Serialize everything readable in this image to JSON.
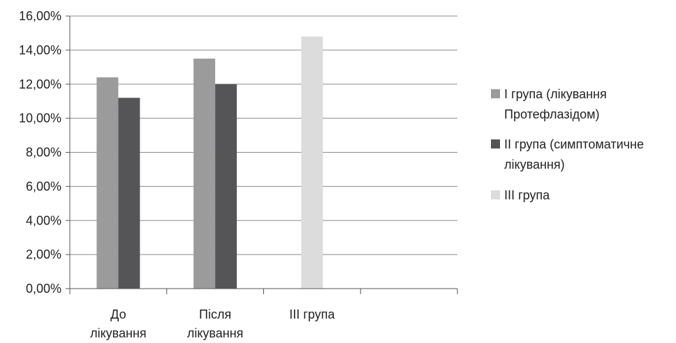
{
  "chart_data": {
    "type": "bar",
    "categories": [
      [
        "До",
        "лікування"
      ],
      [
        "Після",
        "лікування"
      ],
      [
        "III група"
      ],
      [
        ""
      ]
    ],
    "series": [
      {
        "name": "I група (лікування Протефлазідом)",
        "legend_lines": [
          "I група (лікування",
          "Протефлазідом)"
        ],
        "color": "#9b9b9b",
        "values": [
          12.4,
          13.5,
          null,
          null
        ]
      },
      {
        "name": "II група (симптоматичне лікування)",
        "legend_lines": [
          "II група (симптоматичне",
          "лікування)"
        ],
        "color": "#555557",
        "values": [
          11.2,
          12.0,
          null,
          null
        ]
      },
      {
        "name": "III група",
        "legend_lines": [
          "III група"
        ],
        "color": "#dcdcdc",
        "values": [
          null,
          null,
          14.8,
          null
        ]
      }
    ],
    "y_ticks": [
      "0,00%",
      "2,00%",
      "4,00%",
      "6,00%",
      "8,00%",
      "10,00%",
      "12,00%",
      "14,00%",
      "16,00%"
    ],
    "ylim": [
      0,
      16
    ],
    "grid": true,
    "legend_position": "right",
    "title": "",
    "xlabel": "",
    "ylabel": ""
  }
}
